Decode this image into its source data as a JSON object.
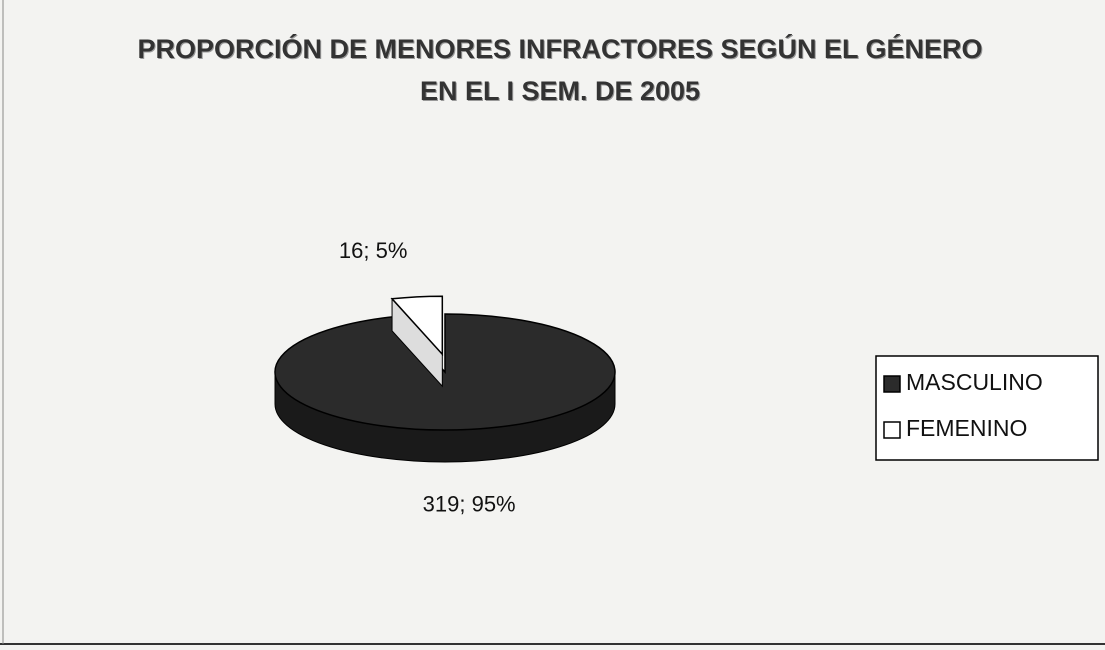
{
  "chart_data": {
    "type": "pie",
    "title": "PROPORCIÓN DE MENORES INFRACTORES SEGÚN EL GÉNERO EN EL I SEM. DE 2005",
    "categories": [
      "MASCULINO",
      "FEMENINO"
    ],
    "values": [
      319,
      16
    ],
    "value_labels": [
      "319; 95%",
      "16; 5%"
    ],
    "colors": [
      "#2b2b2b",
      "#ffffff"
    ],
    "legend": "right"
  }
}
